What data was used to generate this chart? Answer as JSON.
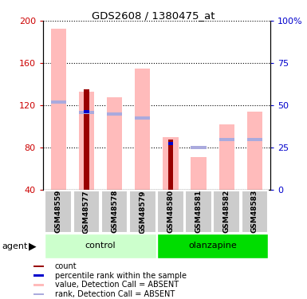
{
  "title": "GDS2608 / 1380475_at",
  "samples": [
    "GSM48559",
    "GSM48577",
    "GSM48578",
    "GSM48579",
    "GSM48580",
    "GSM48581",
    "GSM48582",
    "GSM48583"
  ],
  "groups": {
    "control": [
      0,
      1,
      2,
      3
    ],
    "olanzapine": [
      4,
      5,
      6,
      7
    ]
  },
  "pink_bars_top": [
    193,
    133,
    128,
    155,
    90,
    71,
    102,
    114
  ],
  "dark_red_bars_top": [
    -1,
    135,
    -1,
    -1,
    88,
    -1,
    -1,
    -1
  ],
  "blue_dot_val": [
    -1,
    114,
    -1,
    -1,
    84,
    -1,
    -1,
    -1
  ],
  "light_blue_dot_val": [
    123,
    113,
    112,
    108,
    -1,
    80,
    88,
    88
  ],
  "ylim_left": [
    40,
    200
  ],
  "ylim_right": [
    0,
    100
  ],
  "yticks_left": [
    40,
    80,
    120,
    160,
    200
  ],
  "yticks_right": [
    0,
    25,
    50,
    75,
    100
  ],
  "yticklabels_right": [
    "0",
    "25",
    "50",
    "75",
    "100%"
  ],
  "left_tick_color": "#cc0000",
  "right_tick_color": "#0000cc",
  "pink_color": "#ffbbbb",
  "dark_red_color": "#990000",
  "blue_color": "#0000cc",
  "light_blue_color": "#aaaadd",
  "group_label_bg_ctrl": "#ccffcc",
  "group_label_bg_olz": "#00dd00",
  "sample_bg": "#cccccc",
  "agent_label": "agent",
  "control_label": "control",
  "olanzapine_label": "olanzapine",
  "legend_items": [
    "count",
    "percentile rank within the sample",
    "value, Detection Call = ABSENT",
    "rank, Detection Call = ABSENT"
  ],
  "legend_colors": [
    "#990000",
    "#0000cc",
    "#ffbbbb",
    "#aaaadd"
  ],
  "legend_marker_sizes": [
    8,
    8,
    10,
    10
  ],
  "pink_bar_width": 0.55,
  "dark_red_bar_width": 0.18
}
